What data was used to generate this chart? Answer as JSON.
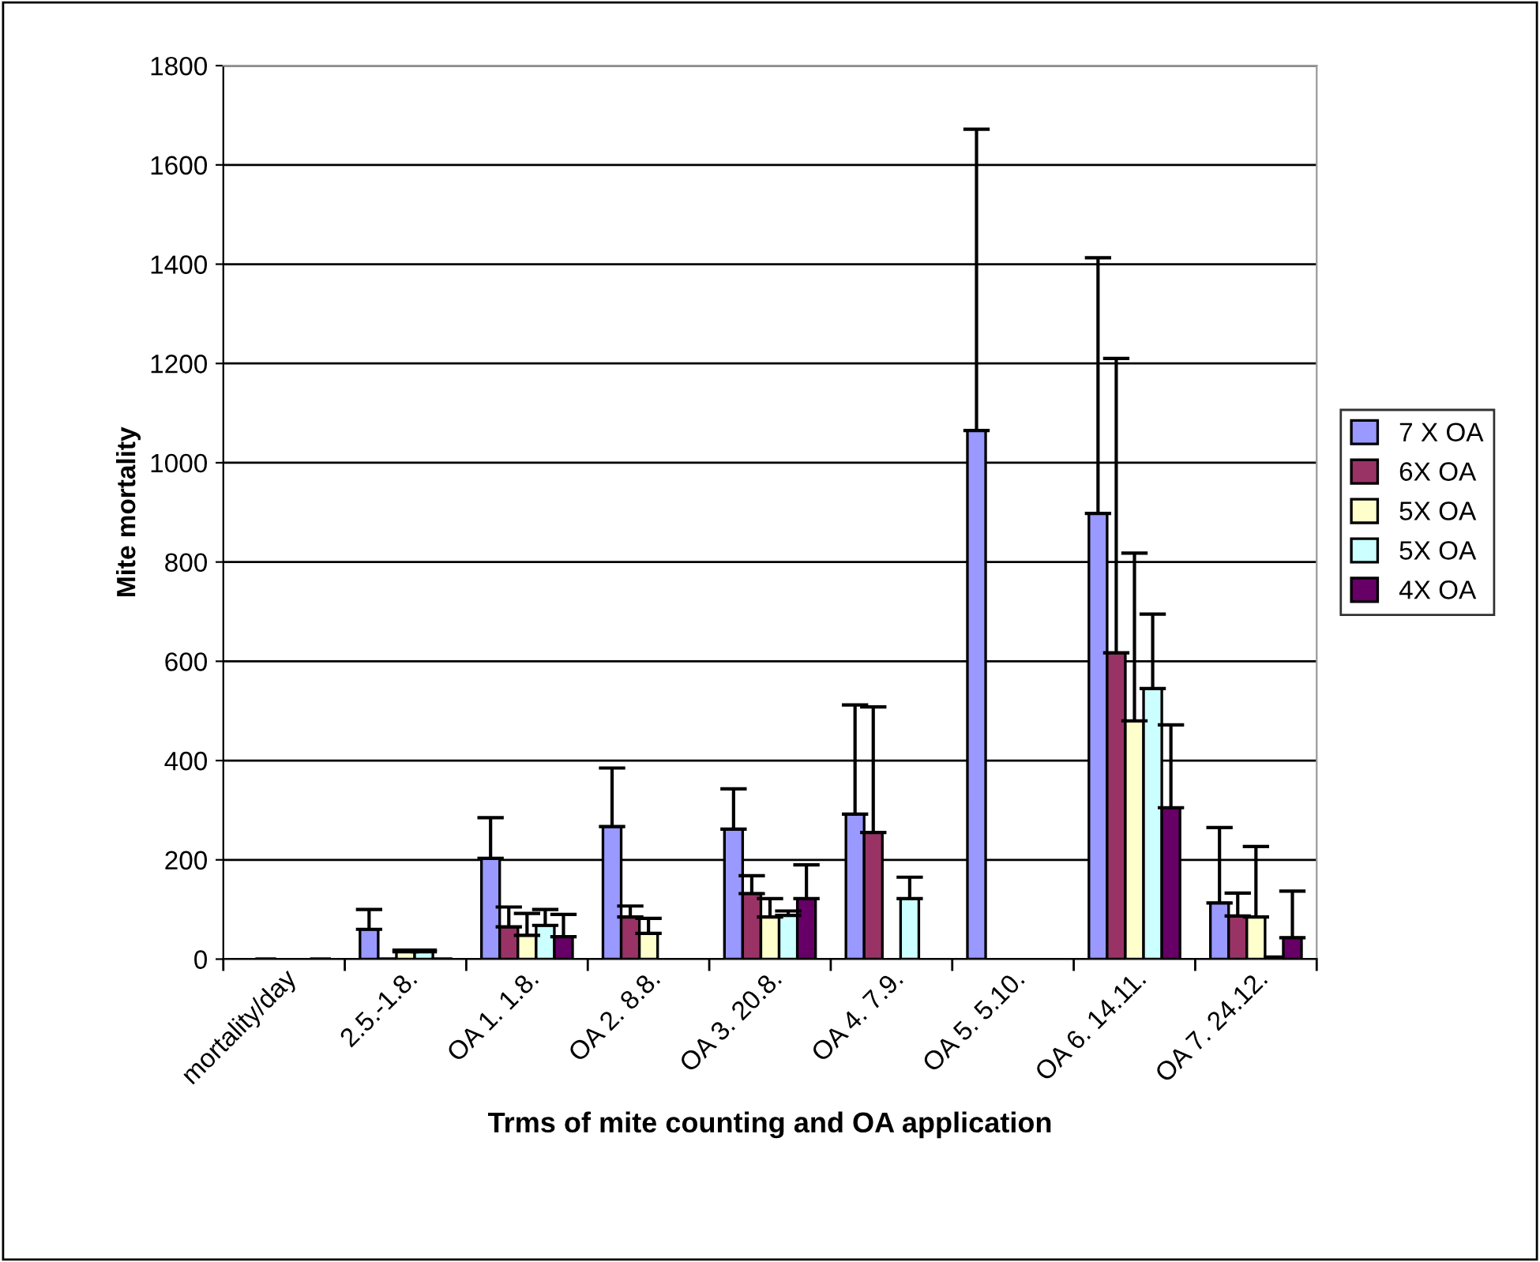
{
  "chart_data": {
    "type": "bar",
    "xlabel": "Trms of mite counting and OA application",
    "ylabel": "Mite mortality",
    "categories": [
      "mortality/day",
      "2.5.-1.8.",
      "OA 1. 1.8.",
      "OA 2. 8.8.",
      "OA 3. 20.8.",
      "OA 4. 7.9.",
      "OA 5. 5.10.",
      "OA 6. 14.11.",
      "OA 7. 24.12."
    ],
    "series": [
      {
        "name": "7 X OA",
        "color": "#9999ff",
        "values": [
          null,
          60,
          203,
          267,
          262,
          292,
          1065,
          898,
          113
        ],
        "errors": [
          null,
          [
            60,
            100
          ],
          [
            203,
            285
          ],
          [
            267,
            385
          ],
          [
            262,
            343
          ],
          [
            292,
            512
          ],
          [
            1065,
            1672
          ],
          [
            898,
            1413
          ],
          [
            113,
            265
          ]
        ]
      },
      {
        "name": "6X OA",
        "color": "#993366",
        "values": [
          1,
          1,
          65,
          85,
          132,
          255,
          null,
          617,
          87
        ],
        "errors": [
          null,
          null,
          [
            65,
            105
          ],
          [
            85,
            107
          ],
          [
            132,
            168
          ],
          [
            255,
            508
          ],
          null,
          [
            617,
            1210
          ],
          [
            87,
            133
          ]
        ]
      },
      {
        "name": "5X OA",
        "color": "#ffffcc",
        "values": [
          null,
          15,
          48,
          52,
          85,
          null,
          null,
          480,
          85
        ],
        "errors": [
          null,
          [
            15,
            18
          ],
          [
            48,
            92
          ],
          [
            52,
            82
          ],
          [
            85,
            122
          ],
          null,
          null,
          [
            480,
            818
          ],
          [
            85,
            227
          ]
        ]
      },
      {
        "name": "5X OA",
        "color": "#ccffff",
        "values": [
          null,
          15,
          68,
          null,
          88,
          122,
          null,
          545,
          5
        ],
        "errors": [
          null,
          [
            15,
            18
          ],
          [
            68,
            100
          ],
          null,
          [
            88,
            97
          ],
          [
            122,
            165
          ],
          null,
          [
            545,
            695
          ],
          null
        ]
      },
      {
        "name": "4X OA",
        "color": "#660066",
        "values": [
          1,
          1,
          45,
          null,
          122,
          null,
          null,
          305,
          43
        ],
        "errors": [
          null,
          null,
          [
            45,
            90
          ],
          null,
          [
            122,
            190
          ],
          null,
          null,
          [
            305,
            472
          ],
          [
            43,
            137
          ]
        ]
      }
    ],
    "ylim": [
      0,
      1800
    ],
    "yticks": [
      0,
      200,
      400,
      600,
      800,
      1000,
      1200,
      1400,
      1600,
      1800
    ],
    "grid": "y",
    "legend": "right"
  }
}
